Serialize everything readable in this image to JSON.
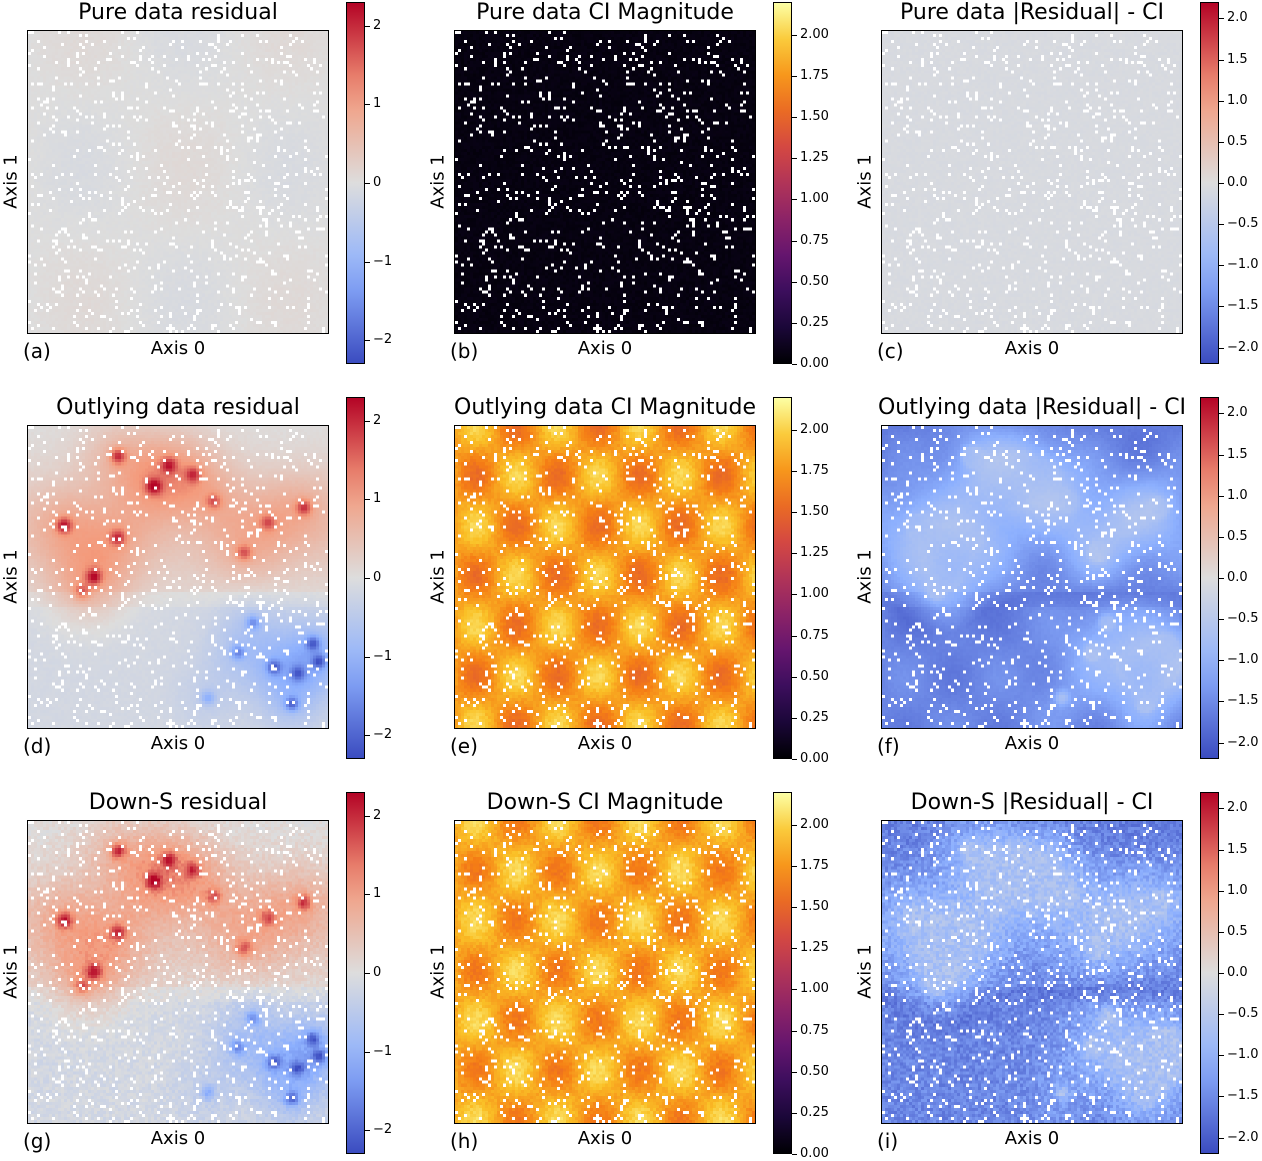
{
  "chart_data": [
    {
      "id": "a",
      "type": "heatmap",
      "title": "Pure data residual",
      "xlabel": "Axis 0",
      "ylabel": "Axis 1",
      "panel_label": "(a)",
      "colormap": "coolwarm",
      "pattern": "pure_residual",
      "clim": [
        -2.3,
        2.3
      ],
      "colorbar_ticks": [
        {
          "v": 2,
          "l": "2"
        },
        {
          "v": 1,
          "l": "1"
        },
        {
          "v": 0,
          "l": "0"
        },
        {
          "v": -1,
          "l": "−1"
        },
        {
          "v": -2,
          "l": "−2"
        }
      ]
    },
    {
      "id": "b",
      "type": "heatmap",
      "title": "Pure data CI Magnitude",
      "xlabel": "Axis 0",
      "ylabel": "Axis 1",
      "panel_label": "(b)",
      "colormap": "inferno",
      "pattern": "pure_ci",
      "clim": [
        0,
        2.2
      ],
      "colorbar_ticks": [
        {
          "v": 2.0,
          "l": "2.00"
        },
        {
          "v": 1.75,
          "l": "1.75"
        },
        {
          "v": 1.5,
          "l": "1.50"
        },
        {
          "v": 1.25,
          "l": "1.25"
        },
        {
          "v": 1.0,
          "l": "1.00"
        },
        {
          "v": 0.75,
          "l": "0.75"
        },
        {
          "v": 0.5,
          "l": "0.50"
        },
        {
          "v": 0.25,
          "l": "0.25"
        },
        {
          "v": 0.0,
          "l": "0.00"
        }
      ]
    },
    {
      "id": "c",
      "type": "heatmap",
      "title": "Pure data |Residual| - CI",
      "xlabel": "Axis 0",
      "ylabel": "Axis 1",
      "panel_label": "(c)",
      "colormap": "coolwarm",
      "pattern": "pure_diff",
      "clim": [
        -2.2,
        2.2
      ],
      "colorbar_ticks": [
        {
          "v": 2.0,
          "l": "2.0"
        },
        {
          "v": 1.5,
          "l": "1.5"
        },
        {
          "v": 1.0,
          "l": "1.0"
        },
        {
          "v": 0.5,
          "l": "0.5"
        },
        {
          "v": 0.0,
          "l": "0.0"
        },
        {
          "v": -0.5,
          "l": "−0.5"
        },
        {
          "v": -1.0,
          "l": "−1.0"
        },
        {
          "v": -1.5,
          "l": "−1.5"
        },
        {
          "v": -2.0,
          "l": "−2.0"
        }
      ]
    },
    {
      "id": "d",
      "type": "heatmap",
      "title": "Outlying data residual",
      "xlabel": "Axis 0",
      "ylabel": "Axis 1",
      "panel_label": "(d)",
      "colormap": "coolwarm",
      "pattern": "outlier_residual",
      "clim": [
        -2.3,
        2.3
      ],
      "colorbar_ticks": [
        {
          "v": 2,
          "l": "2"
        },
        {
          "v": 1,
          "l": "1"
        },
        {
          "v": 0,
          "l": "0"
        },
        {
          "v": -1,
          "l": "−1"
        },
        {
          "v": -2,
          "l": "−2"
        }
      ]
    },
    {
      "id": "e",
      "type": "heatmap",
      "title": "Outlying data CI Magnitude",
      "xlabel": "Axis 0",
      "ylabel": "Axis 1",
      "panel_label": "(e)",
      "colormap": "inferno",
      "pattern": "outlier_ci",
      "clim": [
        0,
        2.2
      ],
      "colorbar_ticks": [
        {
          "v": 2.0,
          "l": "2.00"
        },
        {
          "v": 1.75,
          "l": "1.75"
        },
        {
          "v": 1.5,
          "l": "1.50"
        },
        {
          "v": 1.25,
          "l": "1.25"
        },
        {
          "v": 1.0,
          "l": "1.00"
        },
        {
          "v": 0.75,
          "l": "0.75"
        },
        {
          "v": 0.5,
          "l": "0.50"
        },
        {
          "v": 0.25,
          "l": "0.25"
        },
        {
          "v": 0.0,
          "l": "0.00"
        }
      ]
    },
    {
      "id": "f",
      "type": "heatmap",
      "title": "Outlying data |Residual| - CI",
      "xlabel": "Axis 0",
      "ylabel": "Axis 1",
      "panel_label": "(f)",
      "colormap": "coolwarm",
      "pattern": "outlier_diff",
      "clim": [
        -2.2,
        2.2
      ],
      "colorbar_ticks": [
        {
          "v": 2.0,
          "l": "2.0"
        },
        {
          "v": 1.5,
          "l": "1.5"
        },
        {
          "v": 1.0,
          "l": "1.0"
        },
        {
          "v": 0.5,
          "l": "0.5"
        },
        {
          "v": 0.0,
          "l": "0.0"
        },
        {
          "v": -0.5,
          "l": "−0.5"
        },
        {
          "v": -1.0,
          "l": "−1.0"
        },
        {
          "v": -1.5,
          "l": "−1.5"
        },
        {
          "v": -2.0,
          "l": "−2.0"
        }
      ]
    },
    {
      "id": "g",
      "type": "heatmap",
      "title": "Down-S residual",
      "xlabel": "Axis 0",
      "ylabel": "Axis 1",
      "panel_label": "(g)",
      "colormap": "coolwarm",
      "pattern": "down_residual",
      "clim": [
        -2.3,
        2.3
      ],
      "colorbar_ticks": [
        {
          "v": 2,
          "l": "2"
        },
        {
          "v": 1,
          "l": "1"
        },
        {
          "v": 0,
          "l": "0"
        },
        {
          "v": -1,
          "l": "−1"
        },
        {
          "v": -2,
          "l": "−2"
        }
      ]
    },
    {
      "id": "h",
      "type": "heatmap",
      "title": "Down-S CI Magnitude",
      "xlabel": "Axis 0",
      "ylabel": "Axis 1",
      "panel_label": "(h)",
      "colormap": "inferno",
      "pattern": "down_ci",
      "clim": [
        0,
        2.2
      ],
      "colorbar_ticks": [
        {
          "v": 2.0,
          "l": "2.00"
        },
        {
          "v": 1.75,
          "l": "1.75"
        },
        {
          "v": 1.5,
          "l": "1.50"
        },
        {
          "v": 1.25,
          "l": "1.25"
        },
        {
          "v": 1.0,
          "l": "1.00"
        },
        {
          "v": 0.75,
          "l": "0.75"
        },
        {
          "v": 0.5,
          "l": "0.50"
        },
        {
          "v": 0.25,
          "l": "0.25"
        },
        {
          "v": 0.0,
          "l": "0.00"
        }
      ]
    },
    {
      "id": "i",
      "type": "heatmap",
      "title": "Down-S |Residual| - CI",
      "xlabel": "Axis 0",
      "ylabel": "Axis 1",
      "panel_label": "(i)",
      "colormap": "coolwarm",
      "pattern": "down_diff",
      "clim": [
        -2.2,
        2.2
      ],
      "colorbar_ticks": [
        {
          "v": 2.0,
          "l": "2.0"
        },
        {
          "v": 1.5,
          "l": "1.5"
        },
        {
          "v": 1.0,
          "l": "1.0"
        },
        {
          "v": 0.5,
          "l": "0.5"
        },
        {
          "v": 0.0,
          "l": "0.0"
        },
        {
          "v": -0.5,
          "l": "−0.5"
        },
        {
          "v": -1.0,
          "l": "−1.0"
        },
        {
          "v": -1.5,
          "l": "−1.5"
        },
        {
          "v": -2.0,
          "l": "−2.0"
        }
      ]
    }
  ]
}
